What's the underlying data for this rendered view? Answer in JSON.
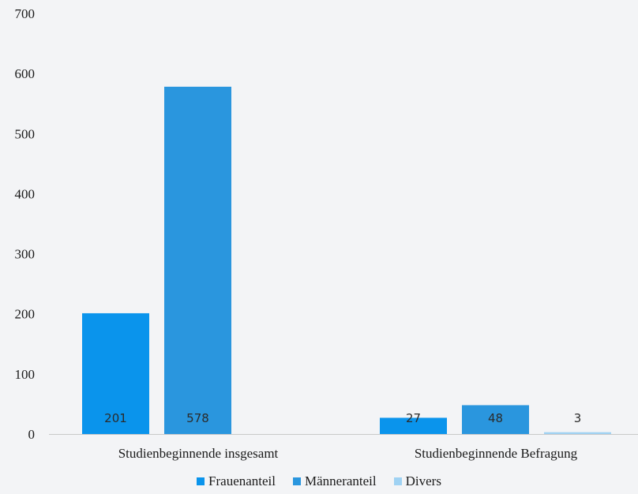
{
  "chart_data": {
    "type": "bar",
    "categories": [
      "Studienbeginnende insgesamt",
      "Studienbeginnende Befragung"
    ],
    "series": [
      {
        "name": "Frauenanteil",
        "values": [
          201,
          27
        ],
        "color": "#0a94ec"
      },
      {
        "name": "Männeranteil",
        "values": [
          578,
          48
        ],
        "color": "#2a96de"
      },
      {
        "name": "Divers",
        "values": [
          null,
          3
        ],
        "color": "#9fd2f3"
      }
    ],
    "data_labels": [
      [
        "201",
        "27"
      ],
      [
        "578",
        "48"
      ],
      [
        "",
        "3"
      ]
    ],
    "yticks": [
      "0",
      "100",
      "200",
      "300",
      "400",
      "500",
      "600",
      "700"
    ],
    "ylim": [
      0,
      700
    ],
    "legend_position": "bottom",
    "grid": false
  }
}
